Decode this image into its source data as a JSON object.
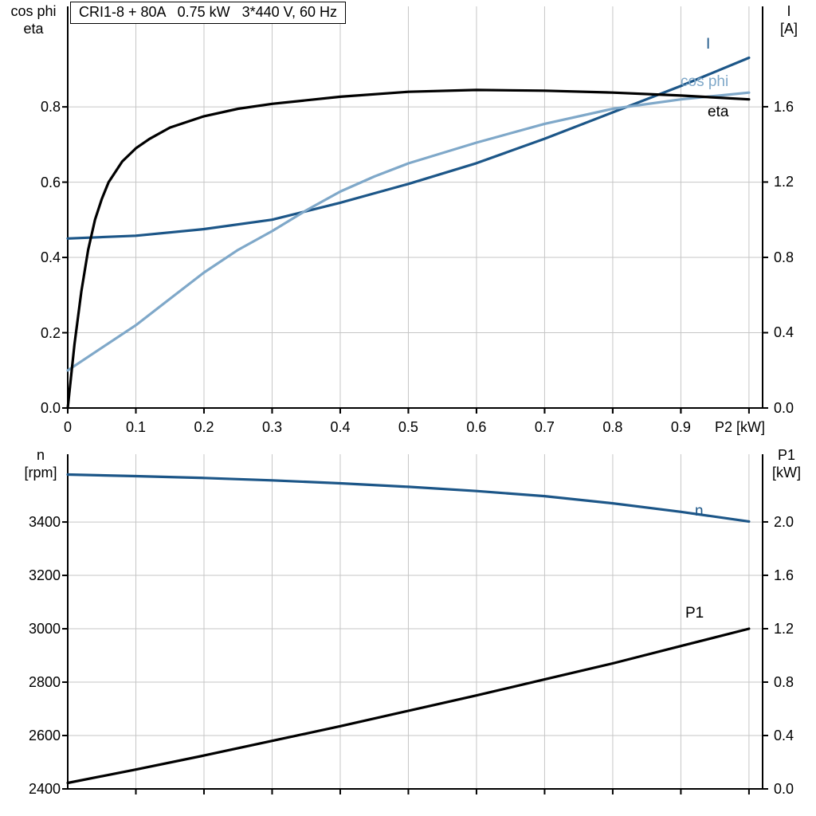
{
  "colors": {
    "grid": "#c6c6c6",
    "axis": "#000000",
    "dark_blue": "#1c5688",
    "light_blue": "#7fa8c9",
    "black": "#000000"
  },
  "chart_data": [
    {
      "type": "line",
      "title": "CRI1-8 + 80A   0.75 kW   3*440 V, 60 Hz",
      "x_axis": {
        "label": "P2 [kW]",
        "range": [
          0,
          1.02
        ],
        "ticks": [
          "0",
          "0.1",
          "0.2",
          "0.3",
          "0.4",
          "0.5",
          "0.6",
          "0.7",
          "0.8",
          "0.9"
        ],
        "grid": [
          0.1,
          0.2,
          0.3,
          0.4,
          0.5,
          0.6,
          0.7,
          0.8,
          0.9,
          1.0
        ]
      },
      "y_left": {
        "label_lines": [
          "cos phi",
          "eta"
        ],
        "range": [
          0,
          1.067
        ],
        "ticks": [
          "0.0",
          "0.2",
          "0.4",
          "0.6",
          "0.8"
        ],
        "grid": [
          0.2,
          0.4,
          0.6,
          0.8
        ]
      },
      "y_right": {
        "label_lines": [
          "I",
          "[A]"
        ],
        "range": [
          0,
          2.133
        ],
        "ticks": [
          "0.0",
          "0.4",
          "0.8",
          "1.2",
          "1.6"
        ]
      },
      "series": [
        {
          "name": "I",
          "axis": "right",
          "color": "#1c5688",
          "x": [
            0,
            0.1,
            0.2,
            0.3,
            0.4,
            0.5,
            0.6,
            0.7,
            0.8,
            0.9,
            1.0
          ],
          "y": [
            0.9,
            0.915,
            0.95,
            1.0,
            1.09,
            1.19,
            1.3,
            1.43,
            1.57,
            1.71,
            1.86
          ]
        },
        {
          "name": "cos phi",
          "axis": "left",
          "color": "#7fa8c9",
          "x": [
            0,
            0.05,
            0.1,
            0.15,
            0.2,
            0.25,
            0.3,
            0.35,
            0.4,
            0.45,
            0.5,
            0.6,
            0.7,
            0.8,
            0.9,
            1.0
          ],
          "y": [
            0.1,
            0.16,
            0.22,
            0.29,
            0.36,
            0.42,
            0.47,
            0.525,
            0.575,
            0.615,
            0.65,
            0.705,
            0.755,
            0.795,
            0.82,
            0.838
          ]
        },
        {
          "name": "eta",
          "axis": "left",
          "color": "#000000",
          "x": [
            0,
            0.01,
            0.02,
            0.03,
            0.04,
            0.05,
            0.06,
            0.08,
            0.1,
            0.12,
            0.15,
            0.2,
            0.25,
            0.3,
            0.4,
            0.5,
            0.6,
            0.7,
            0.8,
            0.9,
            1.0
          ],
          "y": [
            0,
            0.17,
            0.31,
            0.42,
            0.5,
            0.555,
            0.6,
            0.655,
            0.69,
            0.715,
            0.745,
            0.775,
            0.795,
            0.808,
            0.827,
            0.84,
            0.845,
            0.843,
            0.838,
            0.83,
            0.82
          ]
        }
      ]
    },
    {
      "type": "line",
      "title": "",
      "x_axis": {
        "label": "",
        "range": [
          0,
          1.02
        ],
        "ticks": [],
        "grid": [
          0.1,
          0.2,
          0.3,
          0.4,
          0.5,
          0.6,
          0.7,
          0.8,
          0.9,
          1.0
        ]
      },
      "y_left": {
        "label_lines": [
          "n",
          "[rpm]"
        ],
        "range": [
          2400,
          3654
        ],
        "ticks": [
          "2400",
          "2600",
          "2800",
          "3000",
          "3200",
          "3400"
        ],
        "grid": [
          2600,
          2800,
          3000,
          3200,
          3400
        ]
      },
      "y_right": {
        "label_lines": [
          "P1",
          "[kW]"
        ],
        "range": [
          0,
          2.507
        ],
        "ticks": [
          "0.0",
          "0.4",
          "0.8",
          "1.2",
          "1.6",
          "2.0"
        ]
      },
      "series": [
        {
          "name": "n",
          "axis": "left",
          "color": "#1c5688",
          "x": [
            0,
            0.1,
            0.2,
            0.3,
            0.4,
            0.5,
            0.6,
            0.7,
            0.8,
            0.9,
            1.0
          ],
          "y": [
            3578,
            3572,
            3565,
            3556,
            3545,
            3532,
            3516,
            3497,
            3470,
            3438,
            3402
          ]
        },
        {
          "name": "P1",
          "axis": "right",
          "color": "#000000",
          "x": [
            0,
            0.1,
            0.2,
            0.3,
            0.4,
            0.5,
            0.6,
            0.7,
            0.8,
            0.9,
            1.0
          ],
          "y": [
            0.045,
            0.145,
            0.25,
            0.36,
            0.47,
            0.585,
            0.7,
            0.82,
            0.94,
            1.07,
            1.2
          ]
        }
      ]
    }
  ]
}
